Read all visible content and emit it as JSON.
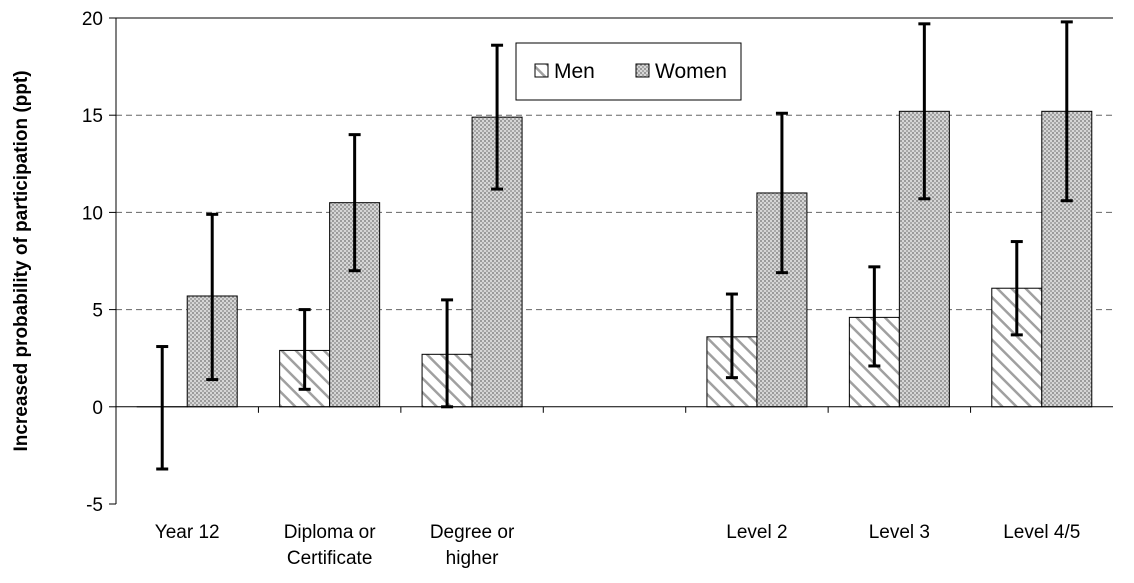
{
  "chart_data": {
    "type": "bar",
    "ylabel": "Increased probability of participation (ppt)",
    "ylim": [
      -5,
      20
    ],
    "yticks": [
      -5,
      0,
      5,
      10,
      15,
      20
    ],
    "grid": "dashed horizontal at 5, 10, 15",
    "legend_position": "top-center",
    "categories": [
      [
        "Year 12"
      ],
      [
        "Diploma or",
        "Certificate"
      ],
      [
        "Degree or",
        "higher"
      ],
      [],
      [
        "Level 2"
      ],
      [
        "Level 3"
      ],
      [
        "Level 4/5"
      ]
    ],
    "series": [
      {
        "name": "Men",
        "pattern": "diagonal-hatch",
        "values": [
          0.0,
          2.9,
          2.7,
          null,
          3.6,
          4.6,
          6.1
        ],
        "err_low": [
          -3.2,
          0.9,
          0.0,
          null,
          1.5,
          2.1,
          3.7
        ],
        "err_high": [
          3.1,
          5.0,
          5.5,
          null,
          5.8,
          7.2,
          8.5
        ]
      },
      {
        "name": "Women",
        "pattern": "dotted",
        "values": [
          5.7,
          10.5,
          14.9,
          null,
          11.0,
          15.2,
          15.2
        ],
        "err_low": [
          1.4,
          7.0,
          11.2,
          null,
          6.9,
          10.7,
          10.6
        ],
        "err_high": [
          9.9,
          14.0,
          18.6,
          null,
          15.1,
          19.7,
          19.8
        ]
      }
    ],
    "colors": {
      "bar_stroke": "#000000",
      "hatch": "#a0a0a0",
      "dots": "#9a9a9a",
      "grid": "#666666",
      "women_fill": "#c8c8c8"
    }
  }
}
